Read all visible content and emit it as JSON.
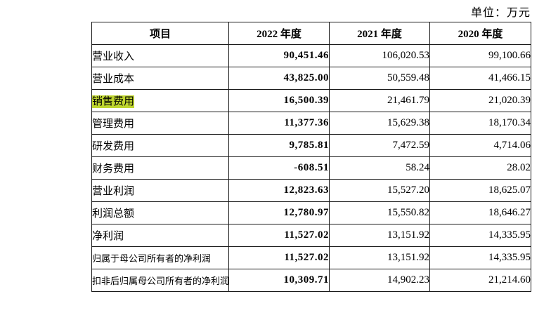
{
  "unit_label": "单位：万元",
  "colors": {
    "highlight": "#bfd62f",
    "border": "#1a1a1a"
  },
  "table": {
    "headers": [
      "项目",
      "2022 年度",
      "2021 年度",
      "2020 年度"
    ],
    "rows": [
      {
        "item": "营业收入",
        "y2022": "90,451.46",
        "y2021": "106,020.53",
        "y2020": "99,100.66",
        "highlight": false
      },
      {
        "item": "营业成本",
        "y2022": "43,825.00",
        "y2021": "50,559.48",
        "y2020": "41,466.15",
        "highlight": false
      },
      {
        "item": "销售费用",
        "y2022": "16,500.39",
        "y2021": "21,461.79",
        "y2020": "21,020.39",
        "highlight": true
      },
      {
        "item": "管理费用",
        "y2022": "11,377.36",
        "y2021": "15,629.38",
        "y2020": "18,170.34",
        "highlight": false
      },
      {
        "item": "研发费用",
        "y2022": "9,785.81",
        "y2021": "7,472.59",
        "y2020": "4,714.06",
        "highlight": false
      },
      {
        "item": "财务费用",
        "y2022": "-608.51",
        "y2021": "58.24",
        "y2020": "28.02",
        "highlight": false
      },
      {
        "item": "营业利润",
        "y2022": "12,823.63",
        "y2021": "15,527.20",
        "y2020": "18,625.07",
        "highlight": false
      },
      {
        "item": "利润总额",
        "y2022": "12,780.97",
        "y2021": "15,550.82",
        "y2020": "18,646.27",
        "highlight": false
      },
      {
        "item": "净利润",
        "y2022": "11,527.02",
        "y2021": "13,151.92",
        "y2020": "14,335.95",
        "highlight": false
      },
      {
        "item": "归属于母公司所有者的净利润",
        "y2022": "11,527.02",
        "y2021": "13,151.92",
        "y2020": "14,335.95",
        "highlight": false
      },
      {
        "item": "扣非后归属母公司所有者的净利润",
        "y2022": "10,309.71",
        "y2021": "14,902.23",
        "y2020": "21,214.60",
        "highlight": false
      }
    ]
  }
}
